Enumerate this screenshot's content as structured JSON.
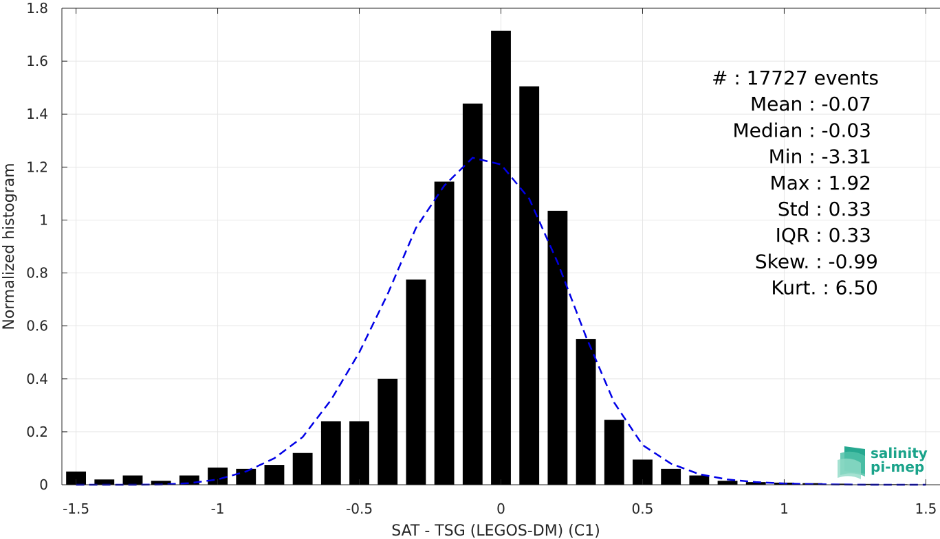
{
  "chart_data": {
    "type": "bar",
    "xlabel": "SAT - TSG (LEGOS-DM) (C1)",
    "ylabel": "Normalized histogram",
    "xlim": [
      -1.55,
      1.55
    ],
    "ylim": [
      0,
      1.8
    ],
    "xticks": [
      -1.5,
      -1,
      -0.5,
      0,
      0.5,
      1,
      1.5
    ],
    "xtick_labels": [
      "-1.5",
      "-1",
      "-0.5",
      "0",
      "0.5",
      "1",
      "1.5"
    ],
    "yticks": [
      0,
      0.2,
      0.4,
      0.6,
      0.8,
      1,
      1.2,
      1.4,
      1.6,
      1.8
    ],
    "ytick_labels": [
      "0",
      "0.2",
      "0.4",
      "0.6",
      "0.8",
      "1",
      "1.2",
      "1.4",
      "1.6",
      "1.8"
    ],
    "grid": true,
    "bin_width": 0.1,
    "bars": {
      "color": "#000000",
      "x": [
        -1.5,
        -1.4,
        -1.3,
        -1.2,
        -1.1,
        -1.0,
        -0.9,
        -0.8,
        -0.7,
        -0.6,
        -0.5,
        -0.4,
        -0.3,
        -0.2,
        -0.1,
        0.0,
        0.1,
        0.2,
        0.3,
        0.4,
        0.5,
        0.6,
        0.7,
        0.8,
        0.9,
        1.0,
        1.1,
        1.2,
        1.3,
        1.4,
        1.5
      ],
      "values": [
        0.05,
        0.02,
        0.035,
        0.015,
        0.035,
        0.065,
        0.06,
        0.075,
        0.12,
        0.24,
        0.24,
        0.4,
        0.775,
        1.145,
        1.44,
        1.715,
        1.505,
        1.035,
        0.55,
        0.245,
        0.095,
        0.06,
        0.035,
        0.015,
        0.01,
        0.008,
        0.006,
        0.004,
        0.003,
        0.002,
        0.001
      ]
    },
    "fit_curve": {
      "style": "dashed",
      "color": "#0000e6",
      "x": [
        -1.5,
        -1.4,
        -1.3,
        -1.2,
        -1.1,
        -1.0,
        -0.9,
        -0.8,
        -0.7,
        -0.6,
        -0.5,
        -0.4,
        -0.3,
        -0.2,
        -0.1,
        0.0,
        0.1,
        0.2,
        0.3,
        0.4,
        0.5,
        0.6,
        0.7,
        0.8,
        0.9,
        1.0,
        1.1,
        1.2,
        1.3,
        1.4,
        1.5
      ],
      "values": [
        0.0,
        0.0,
        0.0,
        0.001,
        0.006,
        0.02,
        0.05,
        0.1,
        0.18,
        0.32,
        0.5,
        0.72,
        0.97,
        1.13,
        1.235,
        1.21,
        1.08,
        0.84,
        0.56,
        0.31,
        0.15,
        0.08,
        0.04,
        0.02,
        0.01,
        0.005,
        0.002,
        0.001,
        0.0,
        0.0,
        0.0
      ]
    },
    "stats": [
      "#  : 17727 events",
      "Mean : -0.07",
      "Median : -0.03",
      "Min : -3.31",
      "Max : 1.92",
      "Std : 0.33",
      "IQR : 0.33",
      "Skew. : -0.99",
      "Kurt. : 6.50"
    ]
  },
  "logo": {
    "line1": "salinity",
    "line2": "pi-mep"
  },
  "colors": {
    "axis": "#262626",
    "grid": "#e6e6e6",
    "logo": "#1aa38a"
  }
}
